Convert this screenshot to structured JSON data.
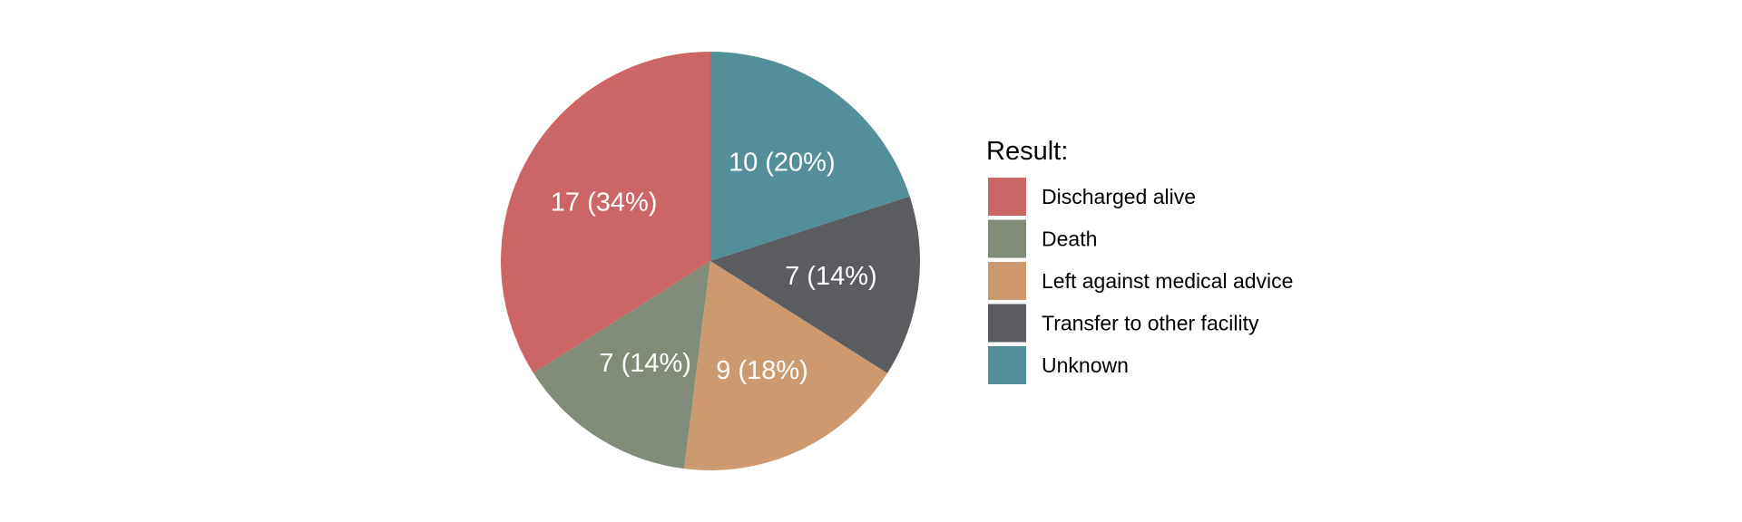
{
  "chart_data": {
    "type": "pie",
    "legend_title": "Result:",
    "legend_position": "right",
    "start": "12 o'clock",
    "direction": "counterclockwise",
    "slices": [
      {
        "label": "Discharged alive",
        "value": 17,
        "percent": 34,
        "display": "17 (34%)",
        "color": "#cc6666"
      },
      {
        "label": "Death",
        "value": 7,
        "percent": 14,
        "display": "7 (14%)",
        "color": "#808c77"
      },
      {
        "label": "Left against medical advice",
        "value": 9,
        "percent": 18,
        "display": "9 (18%)",
        "color": "#cc9a6e"
      },
      {
        "label": "Transfer to other facility",
        "value": 7,
        "percent": 14,
        "display": "7 (14%)",
        "color": "#5b5c60"
      },
      {
        "label": "Unknown",
        "value": 10,
        "percent": 20,
        "display": "10 (20%)",
        "color": "#528f98"
      }
    ]
  }
}
